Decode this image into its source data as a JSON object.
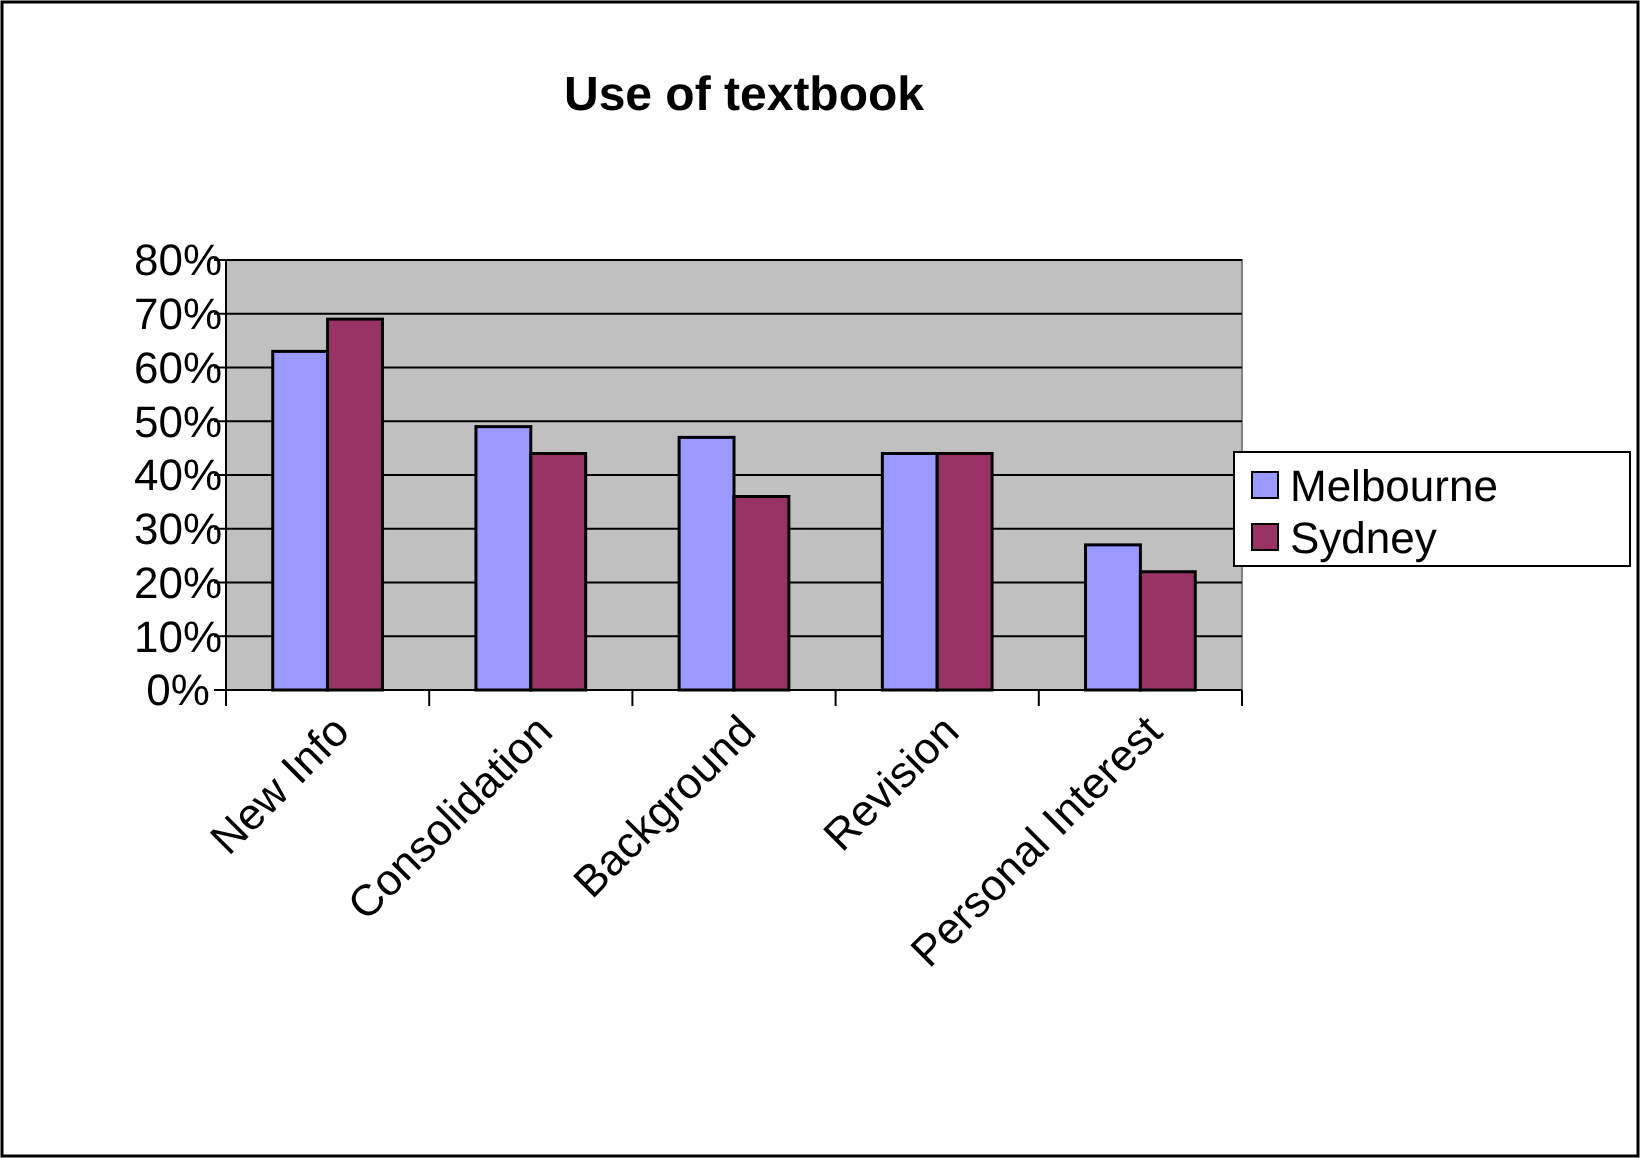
{
  "chart_data": {
    "type": "bar",
    "title": "Use of textbook",
    "categories": [
      "New Info",
      "Consolidation",
      "Background",
      "Revision",
      "Personal Interest"
    ],
    "series": [
      {
        "name": "Melbourne",
        "color": "#9999ff",
        "values": [
          63,
          49,
          47,
          44,
          27
        ]
      },
      {
        "name": "Sydney",
        "color": "#993366",
        "values": [
          69,
          44,
          36,
          44,
          22
        ]
      }
    ],
    "ylim": [
      0,
      80
    ],
    "yticks": [
      {
        "value": 0,
        "label": "0%"
      },
      {
        "value": 10,
        "label": "10%"
      },
      {
        "value": 20,
        "label": "20%"
      },
      {
        "value": 30,
        "label": "30%"
      },
      {
        "value": 40,
        "label": "40%"
      },
      {
        "value": 50,
        "label": "50%"
      },
      {
        "value": 60,
        "label": "60%"
      },
      {
        "value": 70,
        "label": "70%"
      },
      {
        "value": 80,
        "label": "80%"
      }
    ],
    "grid": "y",
    "legend": "right"
  }
}
